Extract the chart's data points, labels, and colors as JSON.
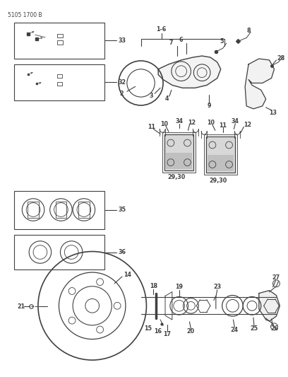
{
  "title_code": "5105 1700 B",
  "bg_color": "#ffffff",
  "line_color": "#404040",
  "figsize": [
    4.08,
    5.33
  ],
  "dpi": 100,
  "lw_main": 0.8,
  "fontsize_label": 5.8,
  "fontsize_title": 5.5
}
